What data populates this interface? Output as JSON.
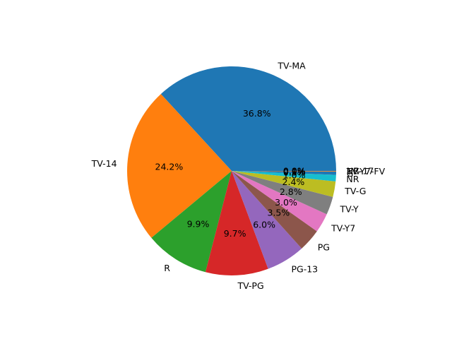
{
  "chart_data": {
    "type": "pie",
    "title": "",
    "start_angle_deg": 0,
    "direction": "counterclockwise",
    "slices": [
      {
        "label": "TV-MA",
        "value": 36.8,
        "pct_label": "36.8%",
        "color": "#1f77b4"
      },
      {
        "label": "TV-14",
        "value": 24.2,
        "pct_label": "24.2%",
        "color": "#ff7f0e"
      },
      {
        "label": "R",
        "value": 9.9,
        "pct_label": "9.9%",
        "color": "#2ca02c"
      },
      {
        "label": "TV-PG",
        "value": 9.7,
        "pct_label": "9.7%",
        "color": "#d62728"
      },
      {
        "label": "PG-13",
        "value": 6.0,
        "pct_label": "6.0%",
        "color": "#9467bd"
      },
      {
        "label": "PG",
        "value": 3.5,
        "pct_label": "3.5%",
        "color": "#8c564b"
      },
      {
        "label": "TV-Y7",
        "value": 3.0,
        "pct_label": "3.0%",
        "color": "#e377c2"
      },
      {
        "label": "TV-Y",
        "value": 2.8,
        "pct_label": "2.8%",
        "color": "#7f7f7f"
      },
      {
        "label": "TV-G",
        "value": 2.4,
        "pct_label": "2.4%",
        "color": "#bcbd22"
      },
      {
        "label": "NR",
        "value": 1.0,
        "pct_label": "1.0%",
        "color": "#17becf"
      },
      {
        "label": "G",
        "value": 0.5,
        "pct_label": "0.5%",
        "color": "#1f77b4"
      },
      {
        "label": "TV-Y7-FV",
        "value": 0.1,
        "pct_label": "0.1%",
        "color": "#ff7f0e"
      },
      {
        "label": "NC-17",
        "value": 0.0,
        "pct_label": "0.0%",
        "color": "#2ca02c"
      },
      {
        "label": "UR",
        "value": 0.0,
        "pct_label": "0.0%",
        "color": "#d62728"
      }
    ]
  }
}
